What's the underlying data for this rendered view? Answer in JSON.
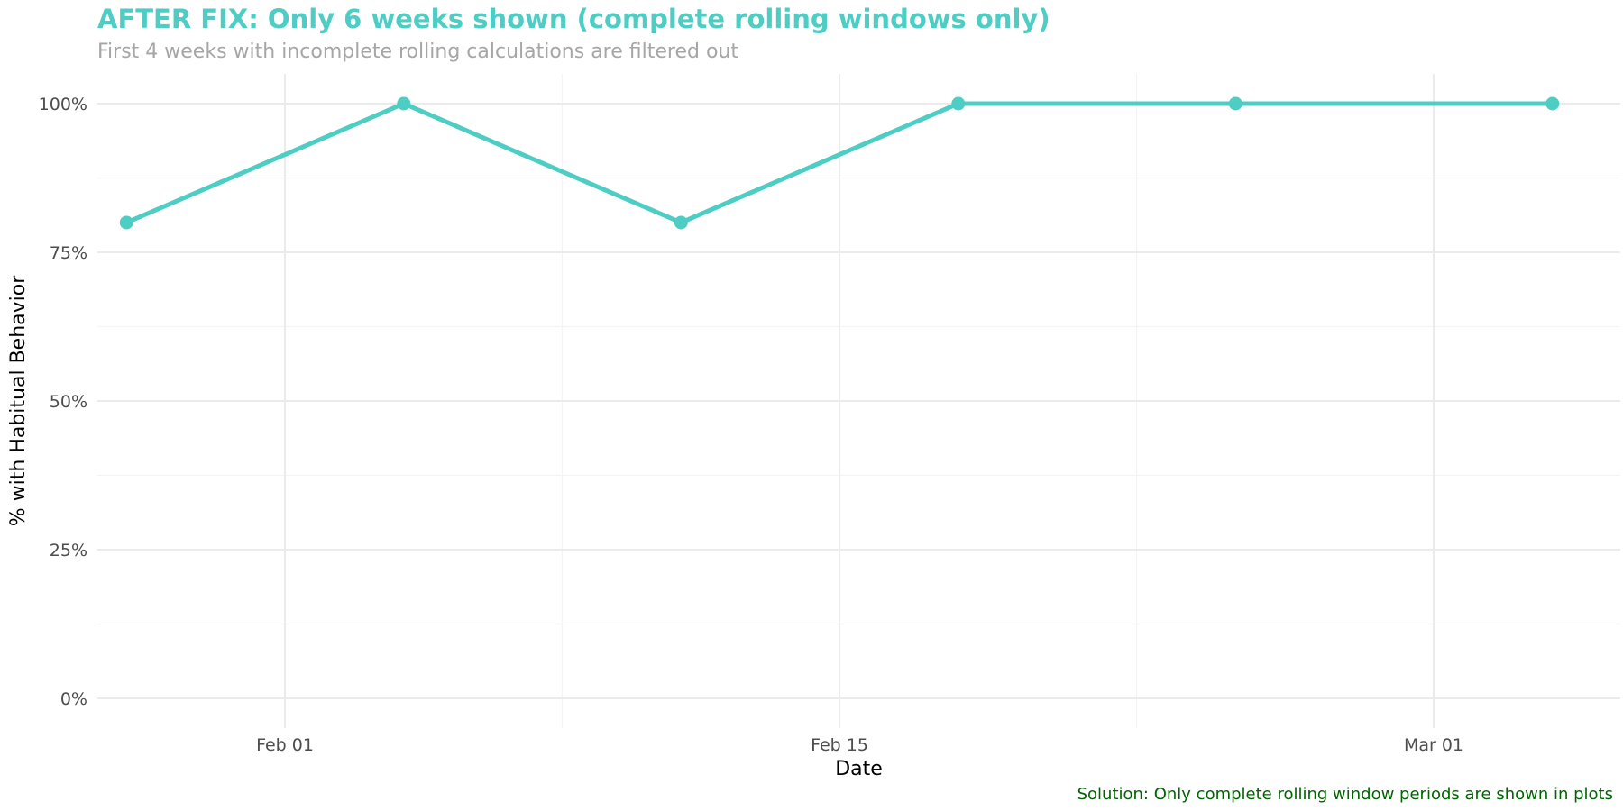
{
  "chart_data": {
    "type": "line",
    "title": "AFTER FIX: Only 6 weeks shown (complete rolling windows only)",
    "subtitle": "First 4 weeks with incomplete rolling calculations are filtered out",
    "caption": "Solution: Only complete rolling window periods are shown in plots",
    "xlabel": "Date",
    "ylabel": "% with Habitual Behavior",
    "x_tick_labels": [
      "Feb 01",
      "Feb 15",
      "Mar 01"
    ],
    "y_tick_labels": [
      "0%",
      "25%",
      "50%",
      "75%",
      "100%"
    ],
    "ylim": [
      0,
      1
    ],
    "grid": true,
    "series": [
      {
        "x": [
          "Jan 28",
          "Feb 04",
          "Feb 11",
          "Feb 18",
          "Feb 25",
          "Mar 04"
        ],
        "values": [
          0.8,
          1.0,
          0.8,
          1.0,
          1.0,
          1.0
        ]
      }
    ],
    "colors": {
      "line": "#4ecdc4",
      "title": "#4ecdc4",
      "subtitle": "#a6a6a6",
      "caption": "#006400",
      "grid_major": "#ebebeb",
      "grid_minor": "#f4f4f4"
    }
  }
}
